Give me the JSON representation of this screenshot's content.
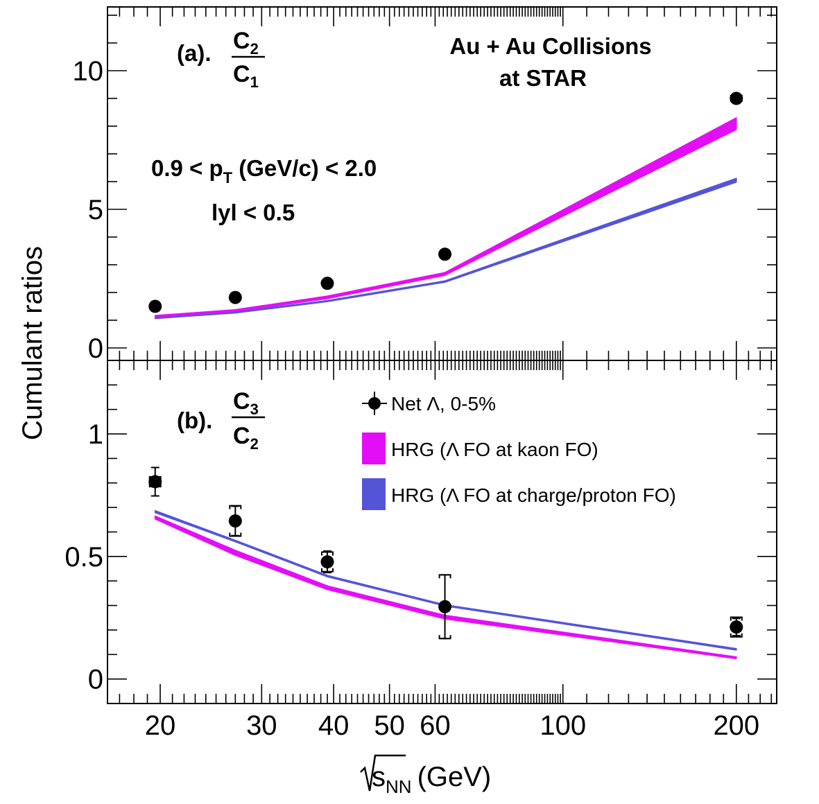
{
  "chart_data": {
    "type": "line",
    "x_scale": "log",
    "x_label_text": "s",
    "x_label_sub": "NN",
    "x_label_unit": "(GeV)",
    "xlim": [
      16.2,
      235
    ],
    "x_ticks": [
      20,
      30,
      40,
      50,
      60,
      100,
      200
    ],
    "x_tick_labels": [
      "20",
      "30",
      "40",
      "50",
      "60",
      "100",
      "200"
    ],
    "y_label": "Cumulant ratios",
    "annotations": {
      "experiment_line1": "Au + Au Collisions",
      "experiment_line2": "at STAR",
      "pt_prefix": "0.9 < p",
      "pt_sub": "T",
      "pt_suffix": " (GeV/c) < 2.0",
      "rapidity": "lyl < 0.5"
    },
    "legend": {
      "data": "Net Λ, 0-5%",
      "hrg_kaon": "HRG (Λ FO at kaon FO)",
      "hrg_proton": "HRG (Λ FO at charge/proton FO)"
    },
    "colors": {
      "hrg_kaon": "#e40ef6",
      "hrg_proton": "#5454d8",
      "data": "#000000"
    },
    "panels": [
      {
        "id": "a",
        "label_prefix": "(a).",
        "ratio_num": "C",
        "ratio_num_sub": "2",
        "ratio_den": "C",
        "ratio_den_sub": "1",
        "ylim": [
          -0.45,
          12.3
        ],
        "y_ticks": [
          0,
          5,
          10
        ],
        "y_tick_labels": [
          "0",
          "5",
          "10"
        ],
        "data_points": [
          {
            "x": 19.6,
            "y": 1.5,
            "err": 0.05,
            "sys": 0
          },
          {
            "x": 27,
            "y": 1.82,
            "err": 0.05,
            "sys": 0
          },
          {
            "x": 39,
            "y": 2.33,
            "err": 0.05,
            "sys": 0
          },
          {
            "x": 62.4,
            "y": 3.38,
            "err": 0.05,
            "sys": 0
          },
          {
            "x": 200,
            "y": 9.0,
            "err": 0.15,
            "sys": 0.1
          }
        ],
        "hrg_kaon_band": {
          "x": [
            19.6,
            27,
            39,
            62.4,
            200
          ],
          "low": [
            1.12,
            1.32,
            1.78,
            2.62,
            7.88
          ],
          "high": [
            1.17,
            1.38,
            1.87,
            2.72,
            8.3
          ]
        },
        "hrg_proton_band": {
          "x": [
            19.6,
            27,
            39,
            62.4,
            200
          ],
          "low": [
            1.06,
            1.26,
            1.67,
            2.37,
            5.98
          ],
          "high": [
            1.09,
            1.3,
            1.71,
            2.42,
            6.12
          ]
        }
      },
      {
        "id": "b",
        "label_prefix": "(b).",
        "ratio_num": "C",
        "ratio_num_sub": "3",
        "ratio_den": "C",
        "ratio_den_sub": "2",
        "ylim": [
          -0.1,
          1.3
        ],
        "y_ticks": [
          0,
          0.5,
          1
        ],
        "y_tick_labels": [
          "0",
          "0.5",
          "1"
        ],
        "data_points": [
          {
            "x": 19.6,
            "y": 0.805,
            "err": 0.058,
            "sys": 0.02
          },
          {
            "x": 27,
            "y": 0.645,
            "err": 0.06,
            "sys": 0.062
          },
          {
            "x": 39,
            "y": 0.478,
            "err": 0.044,
            "sys": 0.04
          },
          {
            "x": 62.4,
            "y": 0.295,
            "err": 0.13,
            "sys": 0.13
          },
          {
            "x": 200,
            "y": 0.212,
            "err": 0.035,
            "sys": 0.04
          }
        ],
        "hrg_kaon_band": {
          "x": [
            19.6,
            27,
            39,
            62.4,
            200
          ],
          "low": [
            0.653,
            0.505,
            0.365,
            0.245,
            0.083
          ],
          "high": [
            0.665,
            0.525,
            0.38,
            0.26,
            0.09
          ]
        },
        "hrg_proton_band": {
          "x": [
            19.6,
            27,
            39,
            62.4,
            200
          ],
          "low": [
            0.679,
            0.56,
            0.417,
            0.298,
            0.118
          ],
          "high": [
            0.687,
            0.566,
            0.423,
            0.303,
            0.124
          ]
        }
      }
    ]
  }
}
